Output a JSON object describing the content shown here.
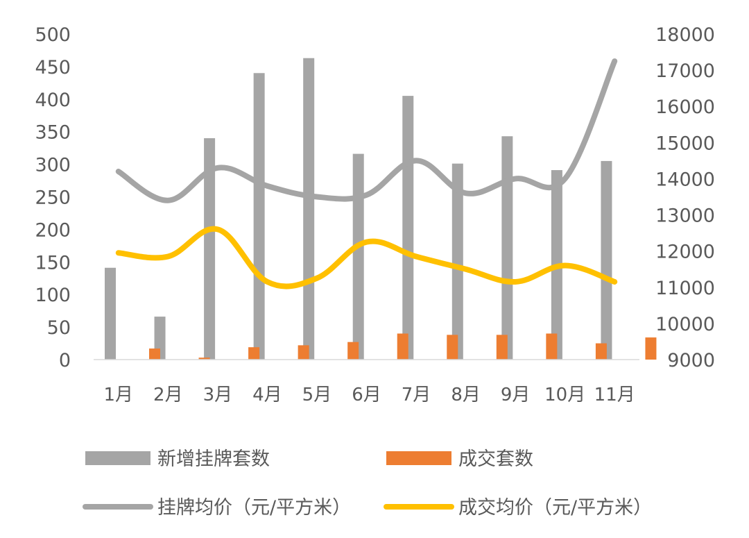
{
  "chart_data": {
    "type": "bar",
    "categories": [
      "1月",
      "2月",
      "3月",
      "4月",
      "5月",
      "6月",
      "7月",
      "8月",
      "9月",
      "10月",
      "11月"
    ],
    "y_left": {
      "lim": [
        0,
        500
      ],
      "ticks": [
        "500",
        "450",
        "400",
        "350",
        "300",
        "250",
        "200",
        "150",
        "100",
        "50",
        "0"
      ]
    },
    "y_right": {
      "lim": [
        9000,
        18000
      ],
      "ticks": [
        "18000",
        "17000",
        "16000",
        "15000",
        "14000",
        "13000",
        "12000",
        "11000",
        "10000",
        "9000"
      ]
    },
    "series": [
      {
        "name": "新增挂牌套数",
        "kind": "bar",
        "axis": "left",
        "color": "#A5A5A5",
        "values": [
          141,
          66,
          340,
          440,
          463,
          316,
          405,
          301,
          343,
          291,
          305
        ]
      },
      {
        "name": "成交套数",
        "kind": "bar",
        "axis": "left",
        "color": "#ED7D31",
        "values": [
          17,
          3,
          19,
          22,
          27,
          40,
          38,
          38,
          40,
          25,
          34
        ]
      },
      {
        "name": "挂牌均价（元/平方米）",
        "kind": "line",
        "axis": "right",
        "color": "#A5A5A5",
        "values": [
          14200,
          13400,
          14300,
          13800,
          13500,
          13550,
          14500,
          13600,
          14000,
          14000,
          17250
        ]
      },
      {
        "name": "成交均价（元/平方米）",
        "kind": "line",
        "axis": "right",
        "color": "#FFC000",
        "values": [
          11950,
          11850,
          12600,
          11150,
          11250,
          12250,
          11850,
          11500,
          11150,
          11600,
          11150
        ]
      }
    ],
    "legend_position": "bottom",
    "grid": false
  }
}
